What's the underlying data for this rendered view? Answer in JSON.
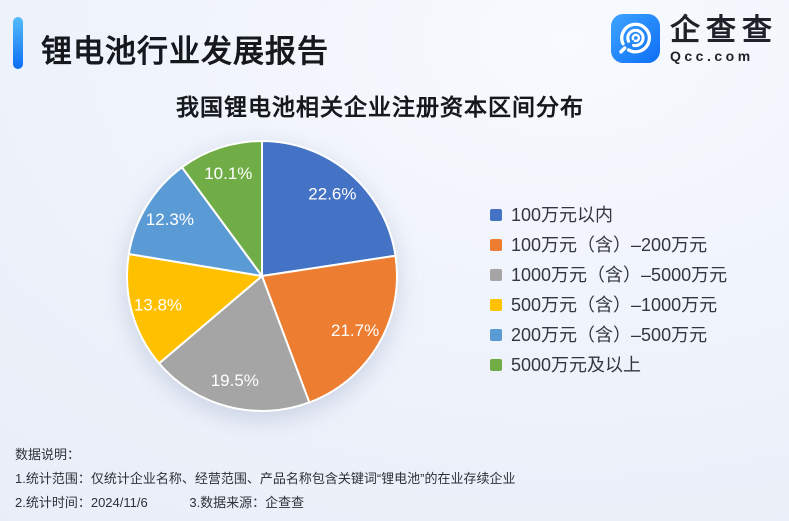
{
  "page": {
    "report_title": "锂电池行业发展报告",
    "brand": {
      "accent_blue": "#1677f5",
      "logo_gradient_top": "#3ea4ff",
      "logo_gradient_bottom": "#0d6ef5"
    },
    "logo": {
      "name": "企查查",
      "domain": "Qcc.com"
    }
  },
  "chart_data": {
    "type": "pie",
    "title": "我国锂电池相关企业注册资本区间分布",
    "legend_position": "right",
    "start_angle_deg": 0,
    "direction": "clockwise",
    "value_suffix": "%",
    "slices": [
      {
        "label": "100万元以内",
        "value": 22.6,
        "color": "#4472c4"
      },
      {
        "label": "100万元（含）–200万元",
        "value": 21.7,
        "color": "#ed7d31"
      },
      {
        "label": "1000万元（含）–5000万元",
        "value": 19.5,
        "color": "#a5a5a5"
      },
      {
        "label": "500万元（含）–1000万元",
        "value": 13.8,
        "color": "#ffc000"
      },
      {
        "label": "200万元（含）–500万元",
        "value": 12.3,
        "color": "#5b9bd5"
      },
      {
        "label": "5000万元及以上",
        "value": 10.1,
        "color": "#70ad47"
      }
    ]
  },
  "footer": {
    "heading": "数据说明：",
    "line1": "1.统计范围：仅统计企业名称、经营范围、产品名称包含关键词“锂电池”的在业存续企业",
    "line2_left": "2.统计时间：2024/11/6",
    "line2_right": "3.数据来源：企查查"
  }
}
